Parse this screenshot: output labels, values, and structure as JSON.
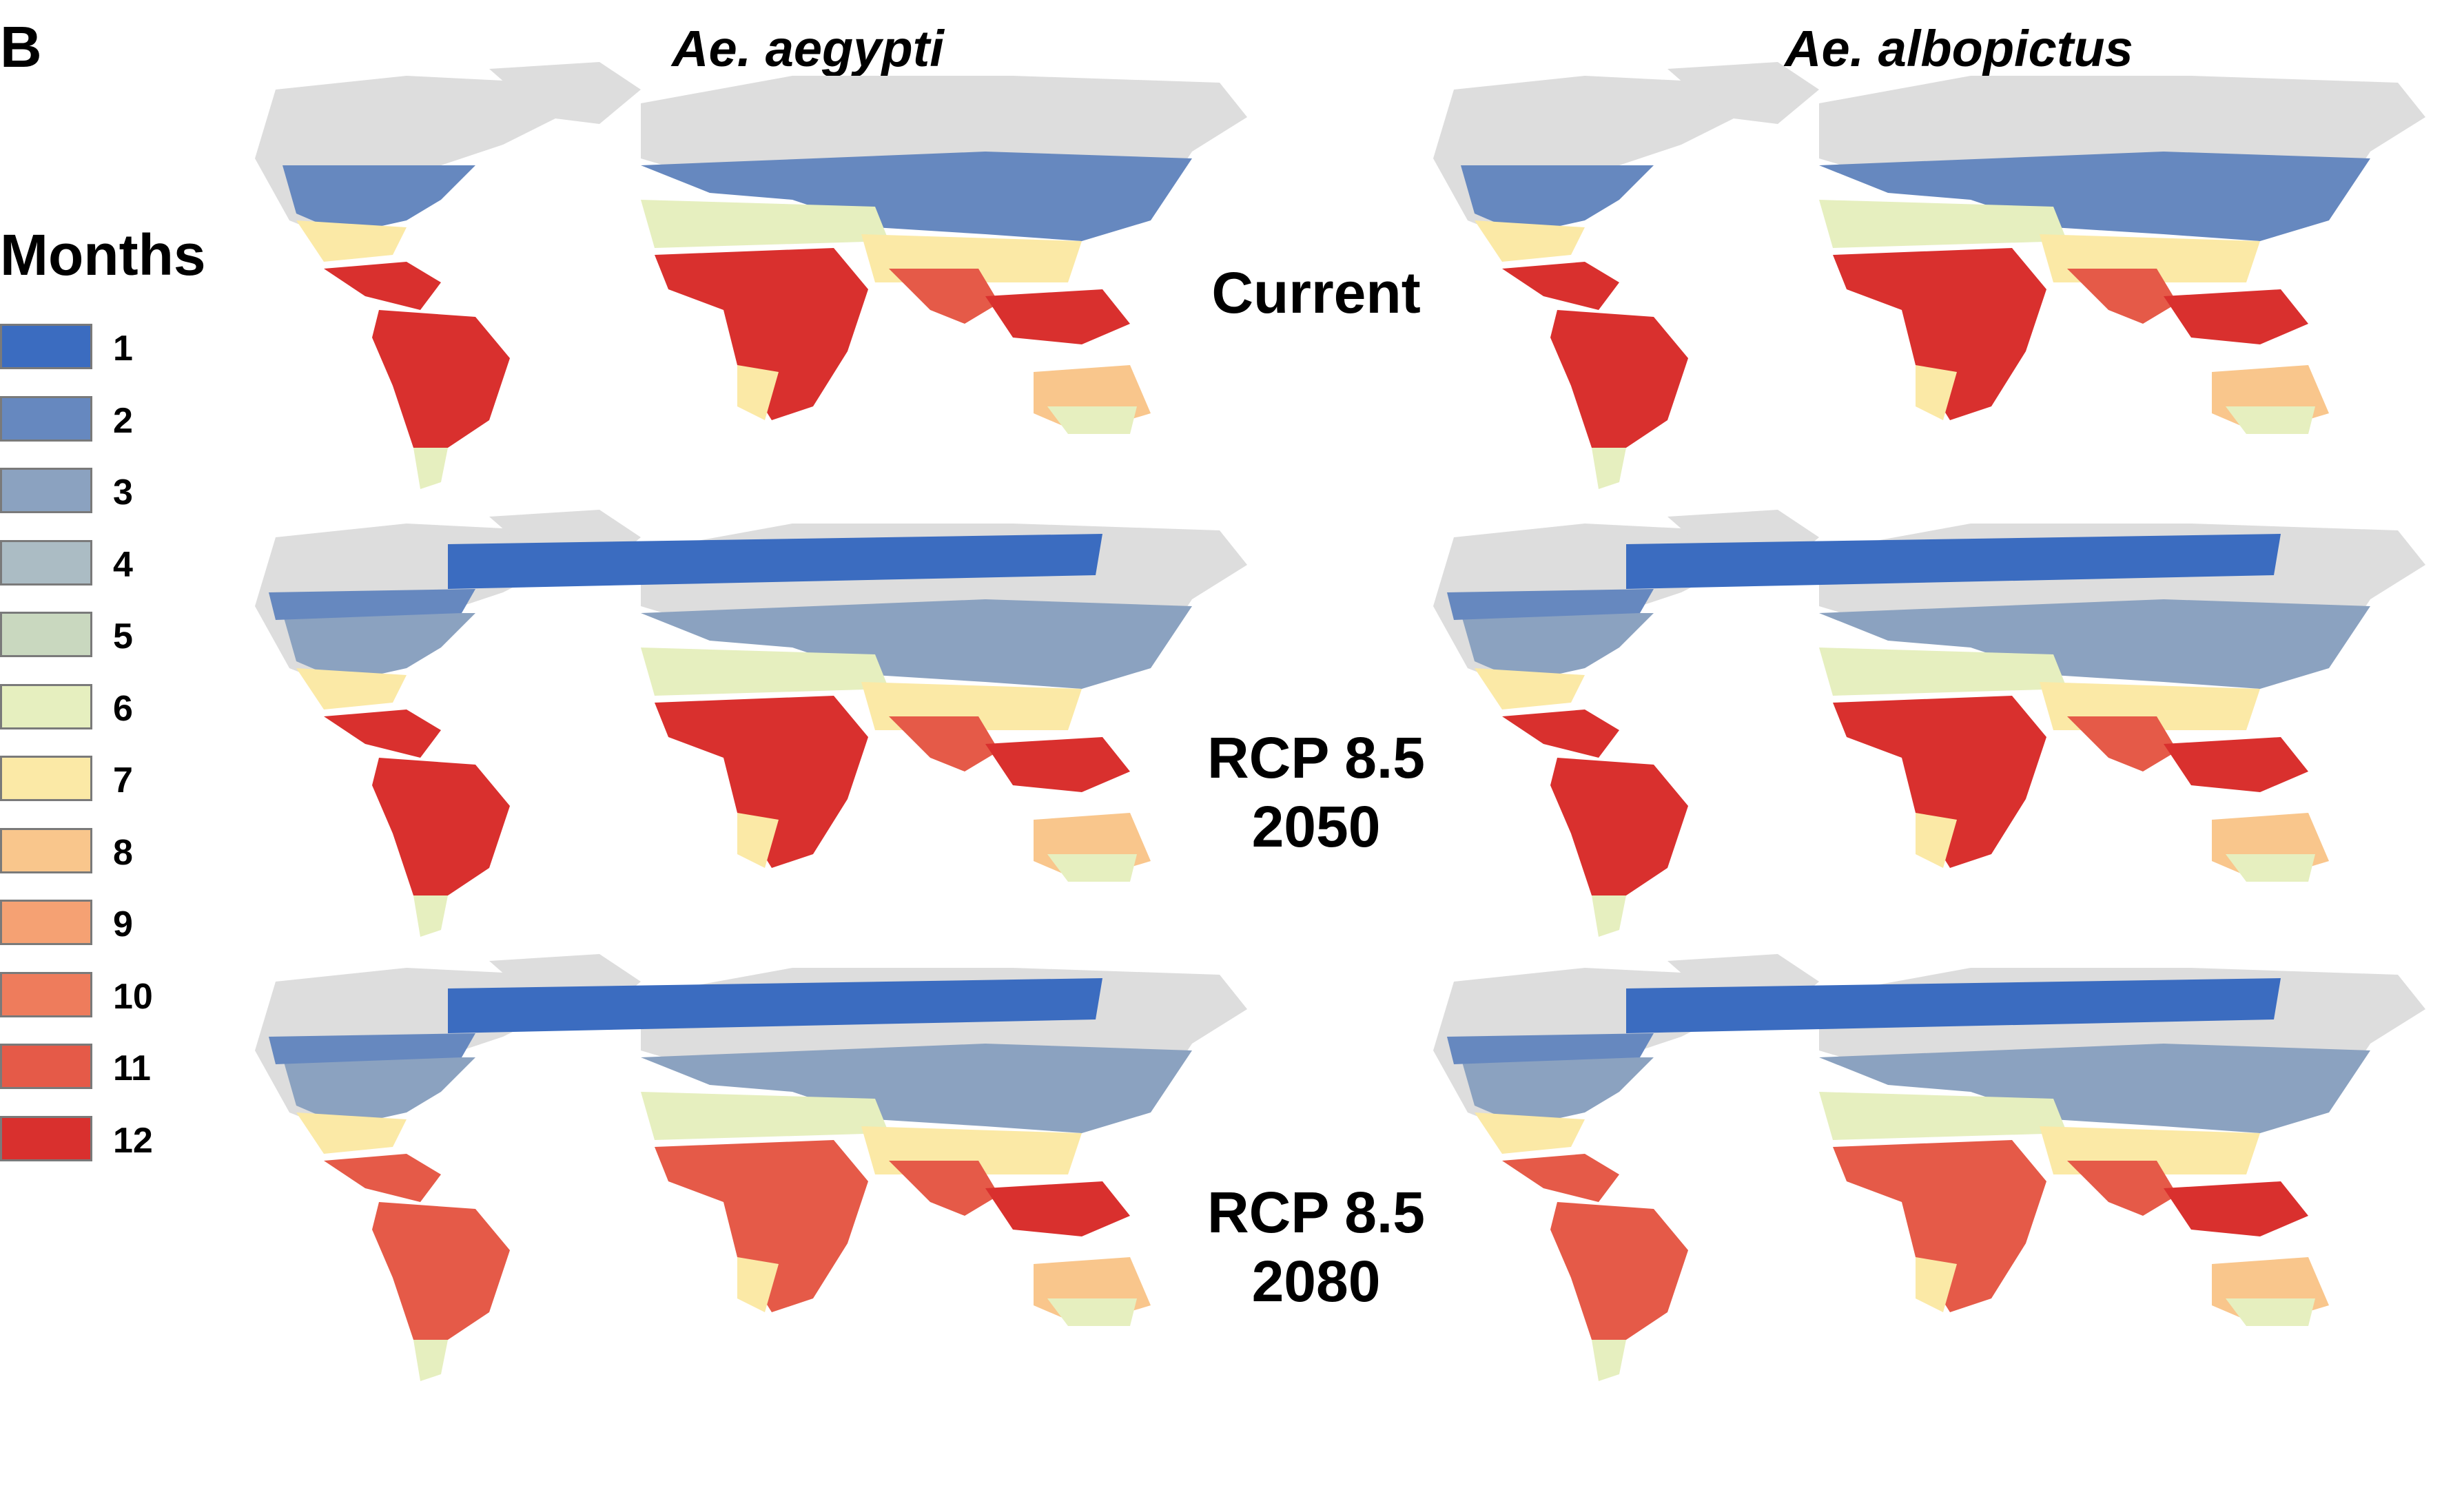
{
  "panel_label": "B",
  "columns": [
    "Ae. aegypti",
    "Ae. albopictus"
  ],
  "legend": {
    "title": "Months",
    "entries": [
      {
        "label": "1",
        "color": "#3b6cc0"
      },
      {
        "label": "2",
        "color": "#6688bf"
      },
      {
        "label": "3",
        "color": "#8ba2c0"
      },
      {
        "label": "4",
        "color": "#abbcc4"
      },
      {
        "label": "5",
        "color": "#c9d8bf"
      },
      {
        "label": "6",
        "color": "#e6efbf"
      },
      {
        "label": "7",
        "color": "#fbe9a6"
      },
      {
        "label": "8",
        "color": "#f9c68c"
      },
      {
        "label": "9",
        "color": "#f5a173"
      },
      {
        "label": "10",
        "color": "#ee7c5c"
      },
      {
        "label": "11",
        "color": "#e55a48"
      },
      {
        "label": "12",
        "color": "#d9302e"
      }
    ]
  },
  "rows": [
    {
      "line1": "Current",
      "line2": ""
    },
    {
      "line1": "RCP 8.5",
      "line2": "2050"
    },
    {
      "line1": "RCP 8.5",
      "line2": "2080"
    }
  ],
  "colors": {
    "land_unsuitable": "#dddddd",
    "low": "#3b6cc0",
    "high": "#d9302e"
  }
}
